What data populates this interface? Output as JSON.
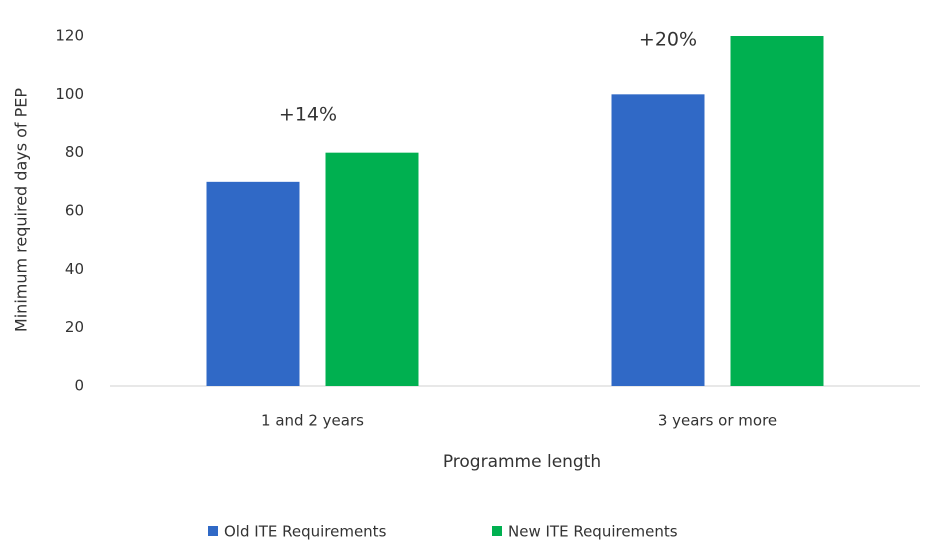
{
  "chart_data": {
    "type": "bar",
    "categories": [
      "1 and 2 years",
      "3 years or more"
    ],
    "series": [
      {
        "name": "Old ITE Requirements",
        "color": "#3069c6",
        "values": [
          70,
          100
        ]
      },
      {
        "name": "New ITE Requirements",
        "color": "#00b050",
        "values": [
          80,
          120
        ]
      }
    ],
    "annotations": [
      "+14%",
      "+20%"
    ],
    "x_label": "Programme length",
    "y_label": "Minimum required days of PEP",
    "ylim": [
      0,
      120
    ],
    "yticks": [
      0,
      20,
      40,
      60,
      80,
      100,
      120
    ],
    "grid": false,
    "legend": "bottom"
  }
}
